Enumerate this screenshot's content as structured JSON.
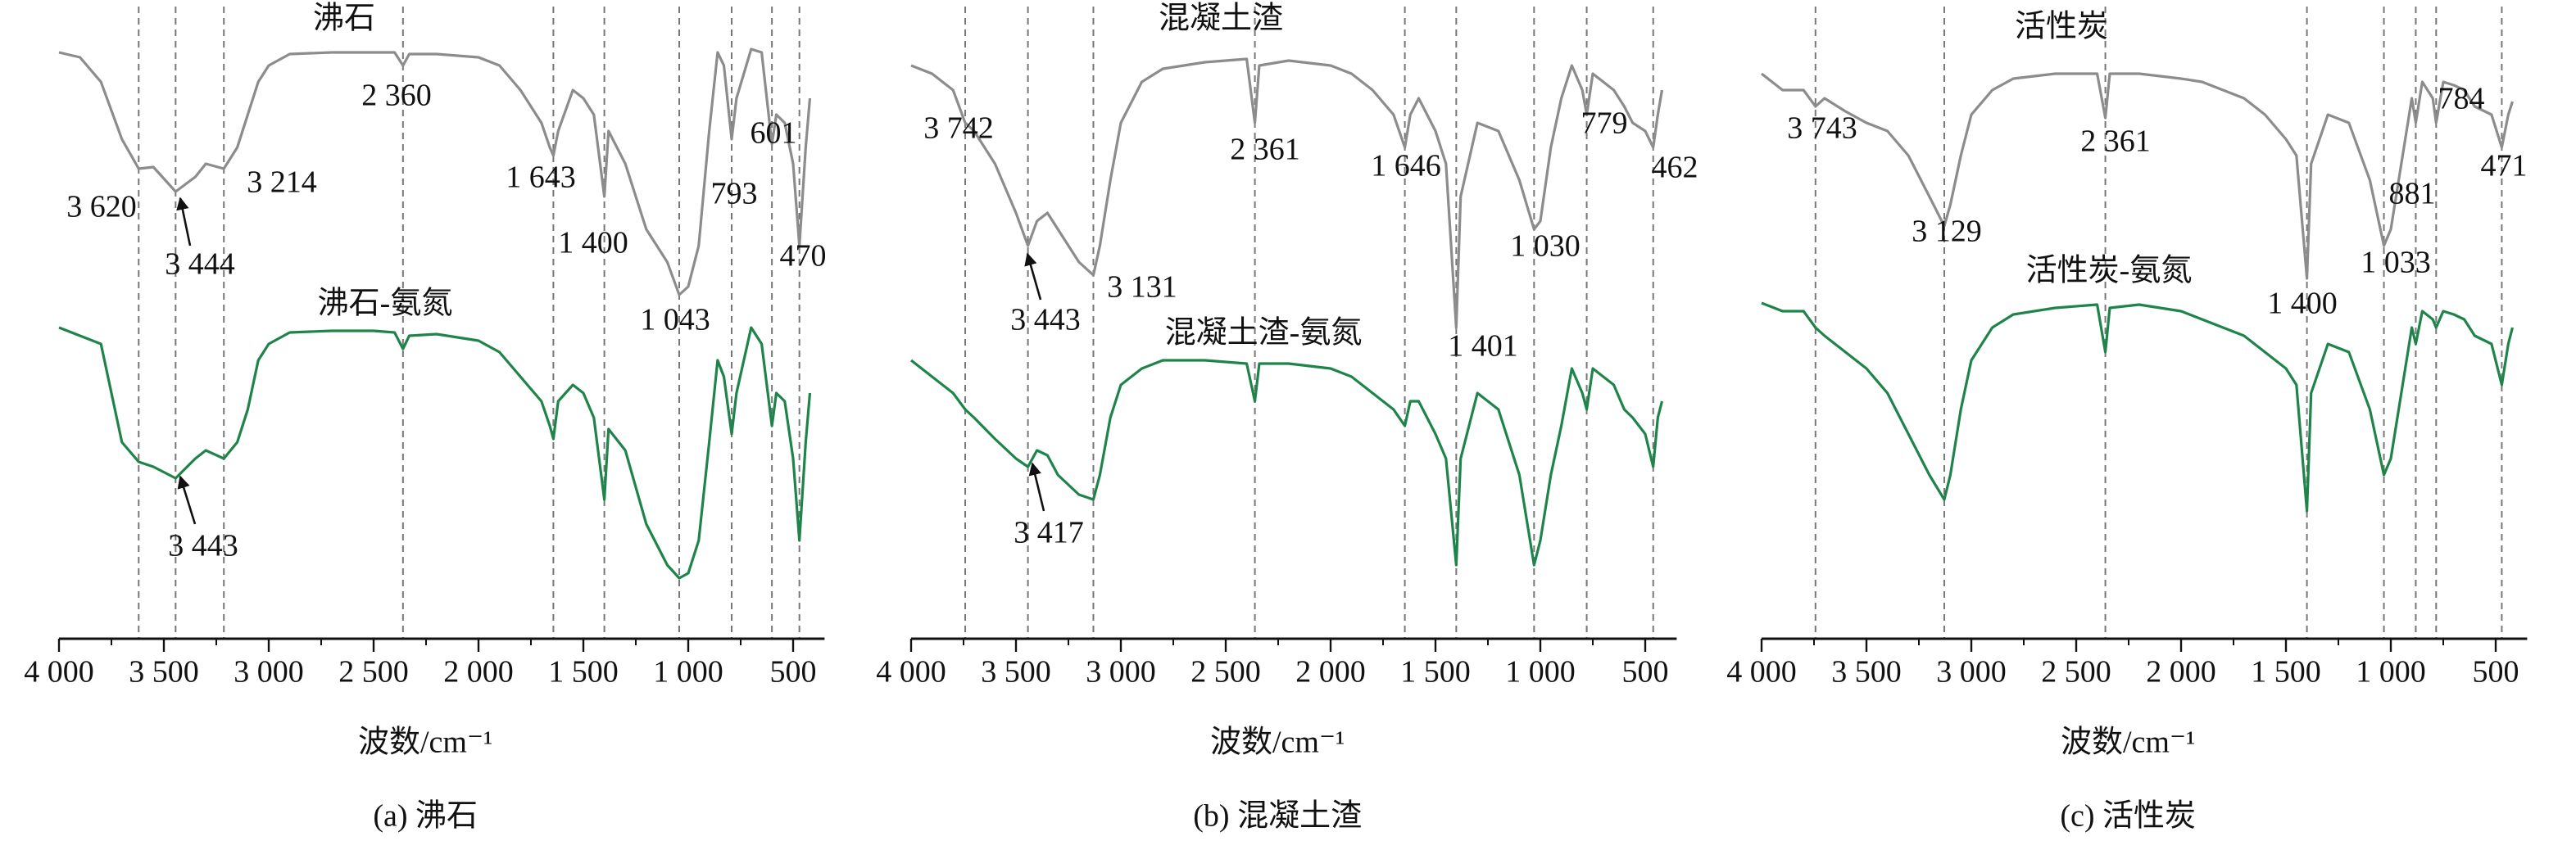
{
  "chart_data": [
    {
      "type": "line",
      "title": "(a) 沸石",
      "x_label": "波数/cm⁻¹",
      "xlim": [
        4000,
        350
      ],
      "ylim": [
        0,
        380
      ],
      "xticks": [
        {
          "value": 4000,
          "label": "4 000"
        },
        {
          "value": 3500,
          "label": "3 500"
        },
        {
          "value": 3000,
          "label": "3 000"
        },
        {
          "value": 2500,
          "label": "2 500"
        },
        {
          "value": 2000,
          "label": "2 000"
        },
        {
          "value": 1500,
          "label": "1 500"
        },
        {
          "value": 1000,
          "label": "1 000"
        },
        500
      ],
      "x": [
        4000,
        3900,
        3800,
        3700,
        3620,
        3550,
        3444,
        3350,
        3300,
        3214,
        3150,
        3100,
        3050,
        3000,
        2900,
        2700,
        2500,
        2400,
        2360,
        2330,
        2200,
        2000,
        1900,
        1800,
        1700,
        1660,
        1643,
        1620,
        1550,
        1500,
        1450,
        1400,
        1380,
        1300,
        1200,
        1100,
        1043,
        1000,
        950,
        900,
        860,
        830,
        793,
        770,
        700,
        650,
        601,
        580,
        540,
        500,
        470,
        440,
        420
      ],
      "series": [
        {
          "name": "沸石",
          "color": "#8c8c8c",
          "values": [
            358,
            355,
            340,
            305,
            287,
            288,
            273,
            282,
            290,
            287,
            300,
            320,
            340,
            350,
            357,
            358,
            358,
            358,
            350,
            357,
            357,
            355,
            350,
            335,
            315,
            300,
            295,
            310,
            335,
            330,
            320,
            270,
            310,
            290,
            250,
            230,
            210,
            215,
            240,
            310,
            358,
            350,
            305,
            330,
            360,
            358,
            302,
            320,
            315,
            290,
            240,
            300,
            330
          ],
          "peaks": [
            {
              "value": 3620,
              "label": "3 620"
            },
            {
              "value": 3444,
              "label": "3 444"
            },
            {
              "value": 3214,
              "label": "3 214"
            },
            {
              "value": 2360,
              "label": "2 360"
            },
            {
              "value": 1643,
              "label": "1 643"
            },
            {
              "value": 1400,
              "label": "1 400"
            },
            {
              "value": 1043,
              "label": "1 043"
            },
            793,
            601,
            470
          ]
        },
        {
          "name": "沸石-氨氮",
          "color": "#1e8449",
          "values": [
            190,
            185,
            180,
            120,
            108,
            105,
            98,
            110,
            115,
            110,
            120,
            140,
            170,
            180,
            187,
            188,
            188,
            187,
            177,
            185,
            186,
            182,
            175,
            160,
            145,
            130,
            122,
            145,
            155,
            150,
            135,
            85,
            128,
            115,
            70,
            45,
            37,
            40,
            60,
            120,
            170,
            160,
            125,
            150,
            190,
            180,
            130,
            150,
            145,
            110,
            60,
            120,
            150
          ],
          "peaks": [
            {
              "value": 3443,
              "label": "3 443"
            }
          ]
        }
      ]
    },
    {
      "type": "line",
      "title": "(b) 混凝土渣",
      "x_label": "波数/cm⁻¹",
      "xlim": [
        4000,
        350
      ],
      "ylim": [
        0,
        380
      ],
      "xticks": [
        {
          "value": 4000,
          "label": "4 000"
        },
        {
          "value": 3500,
          "label": "3 500"
        },
        {
          "value": 3000,
          "label": "3 000"
        },
        {
          "value": 2500,
          "label": "2 500"
        },
        {
          "value": 2000,
          "label": "2 000"
        },
        {
          "value": 1500,
          "label": "1 500"
        },
        {
          "value": 1000,
          "label": "1 000"
        },
        500
      ],
      "x": [
        4000,
        3900,
        3800,
        3742,
        3700,
        3600,
        3500,
        3443,
        3400,
        3350,
        3300,
        3200,
        3131,
        3100,
        3050,
        3000,
        2900,
        2800,
        2600,
        2400,
        2361,
        2340,
        2200,
        2000,
        1900,
        1800,
        1700,
        1646,
        1620,
        1580,
        1500,
        1450,
        1401,
        1380,
        1300,
        1200,
        1100,
        1030,
        1000,
        950,
        900,
        850,
        800,
        779,
        750,
        700,
        650,
        600,
        560,
        500,
        462,
        440,
        420
      ],
      "series": [
        {
          "name": "混凝土渣",
          "color": "#8c8c8c",
          "values": [
            350,
            345,
            335,
            315,
            310,
            290,
            260,
            240,
            255,
            260,
            250,
            230,
            222,
            240,
            280,
            315,
            340,
            348,
            352,
            354,
            315,
            350,
            353,
            350,
            345,
            335,
            320,
            300,
            320,
            330,
            310,
            290,
            190,
            270,
            315,
            310,
            280,
            250,
            255,
            300,
            330,
            350,
            335,
            320,
            345,
            340,
            335,
            325,
            315,
            310,
            300,
            320,
            335
          ],
          "peaks": [
            {
              "value": 3742,
              "label": "3 742"
            },
            {
              "value": 3443,
              "label": "3 443"
            },
            {
              "value": 3131,
              "label": "3 131"
            },
            {
              "value": 2361,
              "label": "2 361"
            },
            {
              "value": 1646,
              "label": "1 646"
            },
            {
              "value": 1401,
              "label": "1 401"
            },
            {
              "value": 1030,
              "label": "1 030"
            },
            779,
            462
          ]
        },
        {
          "name": "混凝土渣-氨氮",
          "color": "#1e8449",
          "values": [
            170,
            160,
            150,
            140,
            135,
            122,
            110,
            105,
            115,
            112,
            100,
            88,
            85,
            100,
            135,
            155,
            165,
            170,
            170,
            168,
            145,
            168,
            168,
            165,
            160,
            150,
            140,
            130,
            145,
            145,
            125,
            110,
            45,
            110,
            150,
            140,
            100,
            45,
            60,
            100,
            130,
            165,
            150,
            140,
            165,
            160,
            155,
            140,
            135,
            125,
            105,
            135,
            145
          ],
          "peaks": [
            {
              "value": 3417,
              "label": "3 417"
            }
          ]
        }
      ]
    },
    {
      "type": "line",
      "title": "(c) 活性炭",
      "x_label": "波数/cm⁻¹",
      "xlim": [
        4000,
        350
      ],
      "ylim": [
        0,
        380
      ],
      "xticks": [
        {
          "value": 4000,
          "label": "4 000"
        },
        {
          "value": 3500,
          "label": "3 500"
        },
        {
          "value": 3000,
          "label": "3 000"
        },
        {
          "value": 2500,
          "label": "2 500"
        },
        {
          "value": 2000,
          "label": "2 000"
        },
        {
          "value": 1500,
          "label": "1 500"
        },
        {
          "value": 1000,
          "label": "1 000"
        },
        500
      ],
      "x": [
        4000,
        3900,
        3800,
        3743,
        3700,
        3600,
        3500,
        3400,
        3300,
        3200,
        3129,
        3100,
        3050,
        3000,
        2900,
        2800,
        2600,
        2400,
        2361,
        2340,
        2200,
        2000,
        1900,
        1800,
        1700,
        1600,
        1500,
        1450,
        1400,
        1380,
        1300,
        1200,
        1100,
        1033,
        1000,
        950,
        900,
        881,
        850,
        800,
        784,
        750,
        700,
        650,
        600,
        520,
        471,
        440,
        420
      ],
      "series": [
        {
          "name": "活性炭",
          "color": "#8c8c8c",
          "values": [
            345,
            335,
            335,
            325,
            330,
            322,
            315,
            310,
            295,
            270,
            252,
            265,
            295,
            320,
            335,
            342,
            345,
            345,
            318,
            345,
            345,
            342,
            340,
            335,
            330,
            320,
            305,
            295,
            220,
            290,
            320,
            315,
            280,
            240,
            250,
            290,
            330,
            315,
            340,
            330,
            315,
            340,
            338,
            335,
            325,
            320,
            300,
            320,
            328
          ],
          "peaks": [
            {
              "value": 3743,
              "label": "3 743"
            },
            {
              "value": 3129,
              "label": "3 129"
            },
            {
              "value": 2361,
              "label": "2 361"
            },
            {
              "value": 1400,
              "label": "1 400"
            },
            {
              "value": 1033,
              "label": "1 033"
            },
            881,
            784,
            471
          ]
        },
        {
          "name": "活性炭-氨氮",
          "color": "#1e8449",
          "values": [
            205,
            200,
            200,
            190,
            185,
            175,
            165,
            150,
            125,
            100,
            85,
            100,
            140,
            170,
            190,
            198,
            202,
            204,
            175,
            202,
            204,
            200,
            195,
            190,
            185,
            175,
            165,
            155,
            78,
            150,
            180,
            175,
            140,
            100,
            110,
            150,
            190,
            180,
            200,
            195,
            190,
            200,
            198,
            195,
            185,
            180,
            155,
            180,
            190
          ],
          "peaks": []
        }
      ]
    }
  ]
}
